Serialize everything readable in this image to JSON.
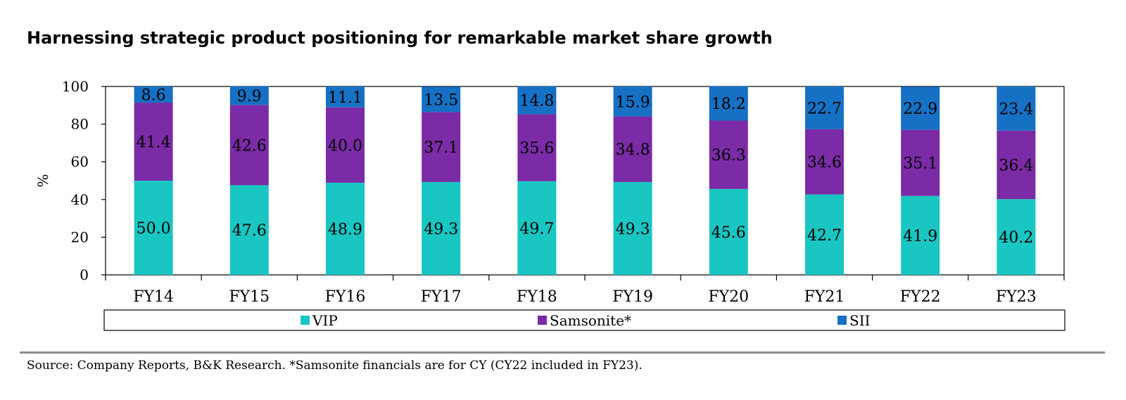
{
  "title": "Harnessing strategic product positioning for remarkable market share growth",
  "source": "Source: Company Reports, B&K Research. *Samsonite financials are for CY (CY22 included in FY23).",
  "chart_data": {
    "type": "bar",
    "stacked": true,
    "title": "Harnessing strategic product positioning for remarkable market share growth",
    "xlabel": "",
    "ylabel": "%",
    "ylim": [
      0,
      100
    ],
    "yticks": [
      0,
      20,
      40,
      60,
      80,
      100
    ],
    "legend_position": "bottom",
    "categories": [
      "FY14",
      "FY15",
      "FY16",
      "FY17",
      "FY18",
      "FY19",
      "FY20",
      "FY21",
      "FY22",
      "FY23"
    ],
    "series": [
      {
        "name": "VIP",
        "color": "#19c6c2",
        "values": [
          50.0,
          47.6,
          48.9,
          49.3,
          49.7,
          49.3,
          45.6,
          42.7,
          41.9,
          40.2
        ],
        "labels": [
          "50.0",
          "47.6",
          "48.9",
          "49.3",
          "49.7",
          "49.3",
          "45.6",
          "42.7",
          "41.9",
          "40.2"
        ]
      },
      {
        "name": "Samsonite*",
        "color": "#7a2ba5",
        "values": [
          41.4,
          42.6,
          40.0,
          37.1,
          35.6,
          34.8,
          36.3,
          34.6,
          35.1,
          36.4
        ],
        "labels": [
          "41.4",
          "42.6",
          "40.0",
          "37.1",
          "35.6",
          "34.8",
          "36.3",
          "34.6",
          "35.1",
          "36.4"
        ]
      },
      {
        "name": "SII",
        "color": "#1670c4",
        "values": [
          8.6,
          9.9,
          11.1,
          13.5,
          14.8,
          15.9,
          18.2,
          22.7,
          22.9,
          23.4
        ],
        "labels": [
          "8.6",
          "9.9",
          "11.1",
          "13.5",
          "14.8",
          "15.9",
          "18.2",
          "22.7",
          "22.9",
          "23.4"
        ]
      }
    ]
  }
}
